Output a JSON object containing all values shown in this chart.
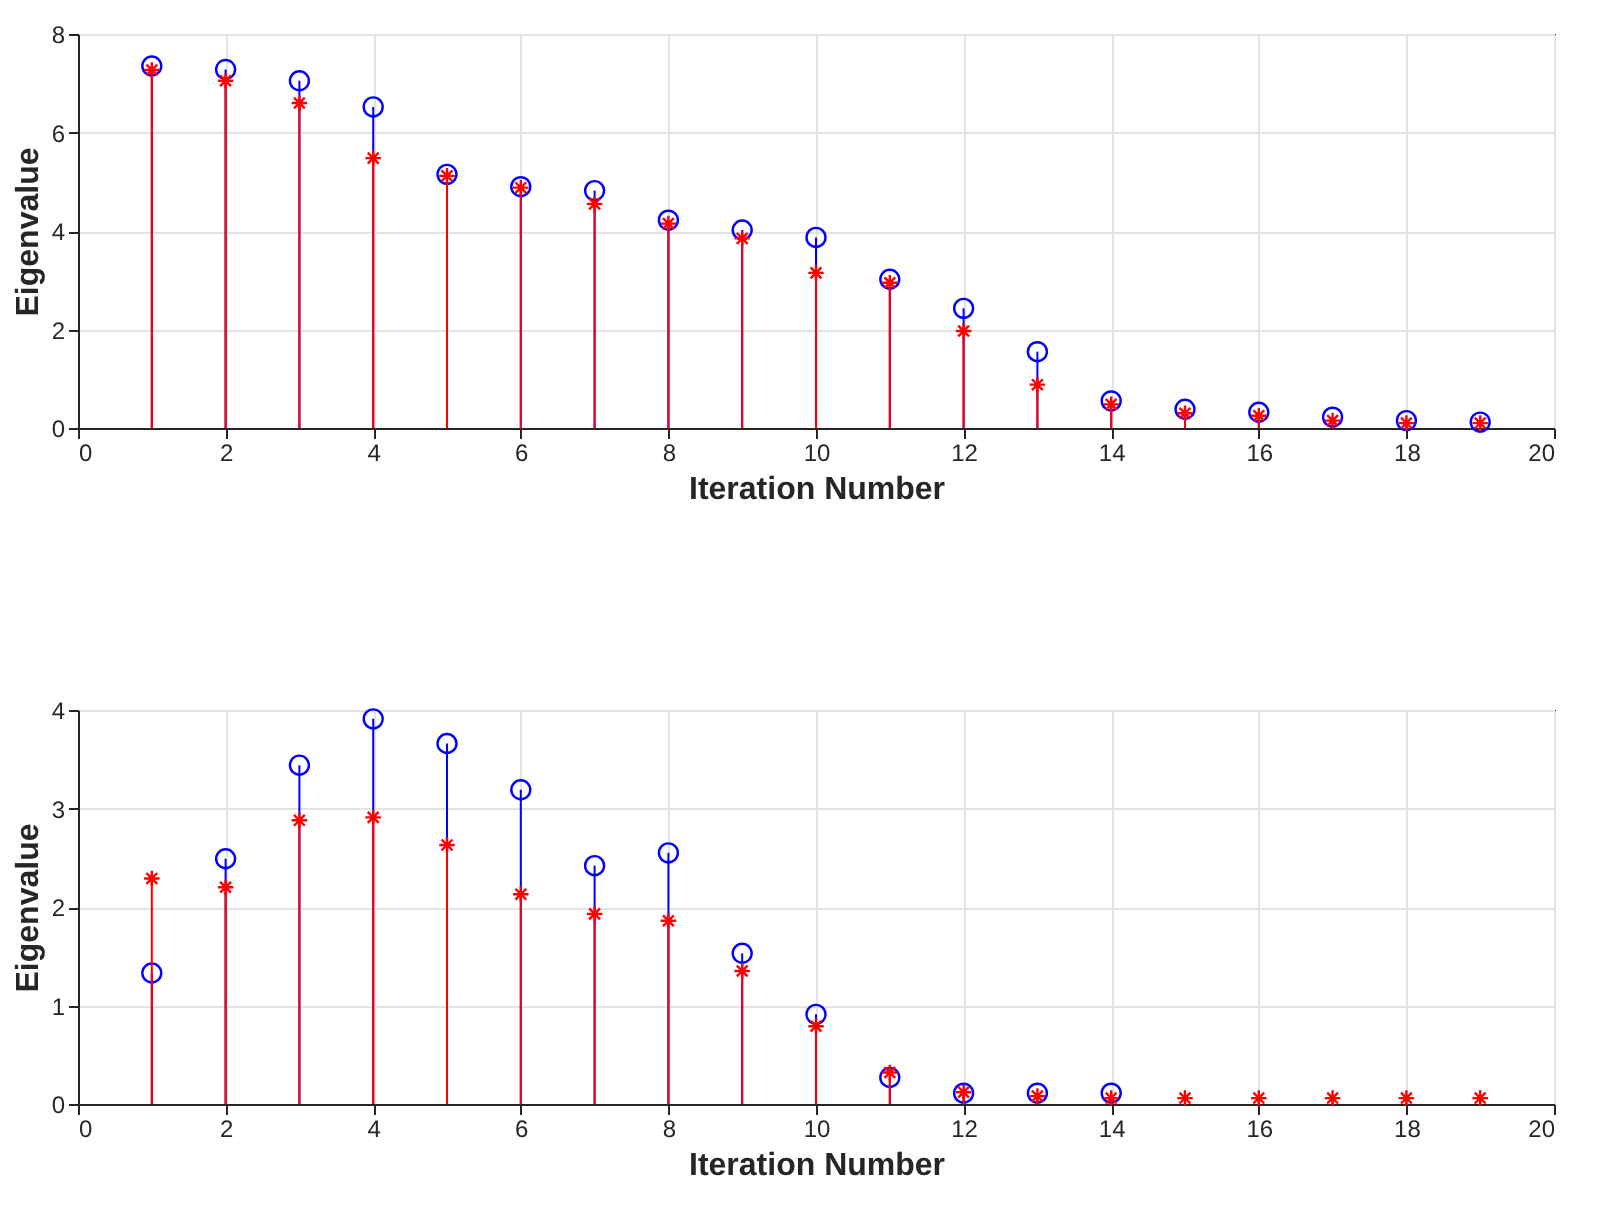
{
  "chart_data": [
    {
      "type": "lollipop",
      "xlabel": "Iteration Number",
      "ylabel": "Eigenvalue",
      "x": [
        1,
        2,
        3,
        4,
        5,
        6,
        7,
        8,
        9,
        10,
        11,
        12,
        13,
        14,
        15,
        16,
        17,
        18,
        19
      ],
      "xlim": [
        0,
        20
      ],
      "xticks": [
        0,
        2,
        4,
        6,
        8,
        10,
        12,
        14,
        16,
        18,
        20
      ],
      "ylim": [
        0,
        8
      ],
      "yticks": [
        0,
        2,
        4,
        6,
        8
      ],
      "grid": true,
      "series": [
        {
          "color": "#0000ff",
          "marker": "circle",
          "values": [
            7.35,
            7.28,
            7.05,
            6.52,
            5.15,
            4.9,
            4.82,
            4.22,
            4.02,
            3.87,
            3.02,
            2.43,
            1.55,
            0.55,
            0.38,
            0.32,
            0.22,
            0.15,
            0.12
          ]
        },
        {
          "color": "#ff0000",
          "marker": "cross",
          "values": [
            7.27,
            7.05,
            6.6,
            5.48,
            5.12,
            4.88,
            4.55,
            4.15,
            3.85,
            3.15,
            2.95,
            1.97,
            0.88,
            0.48,
            0.3,
            0.25,
            0.15,
            0.1,
            0.1
          ]
        }
      ]
    },
    {
      "type": "lollipop",
      "xlabel": "Iteration Number",
      "ylabel": "Eigenvalue",
      "x": [
        1,
        2,
        3,
        4,
        5,
        6,
        7,
        8,
        9,
        10,
        11,
        12,
        13,
        14,
        15,
        16,
        17,
        18,
        19
      ],
      "xlim": [
        0,
        20
      ],
      "xticks": [
        0,
        2,
        4,
        6,
        8,
        10,
        12,
        14,
        16,
        18,
        20
      ],
      "ylim": [
        0,
        4
      ],
      "yticks": [
        0,
        1,
        2,
        3,
        4
      ],
      "grid": true,
      "series": [
        {
          "color": "#0000ff",
          "marker": "circle",
          "values": [
            1.33,
            2.49,
            3.44,
            3.91,
            3.66,
            3.19,
            2.42,
            2.55,
            1.53,
            0.91,
            0.27,
            0.11,
            0.11,
            0.11,
            null,
            null,
            null,
            null,
            null
          ]
        },
        {
          "color": "#ff0000",
          "marker": "cross",
          "values": [
            2.29,
            2.2,
            2.88,
            2.91,
            2.63,
            2.13,
            1.93,
            1.86,
            1.35,
            0.79,
            0.32,
            0.12,
            0.08,
            0.06,
            0.06,
            0.06,
            0.06,
            0.06,
            0.06
          ]
        }
      ]
    }
  ]
}
